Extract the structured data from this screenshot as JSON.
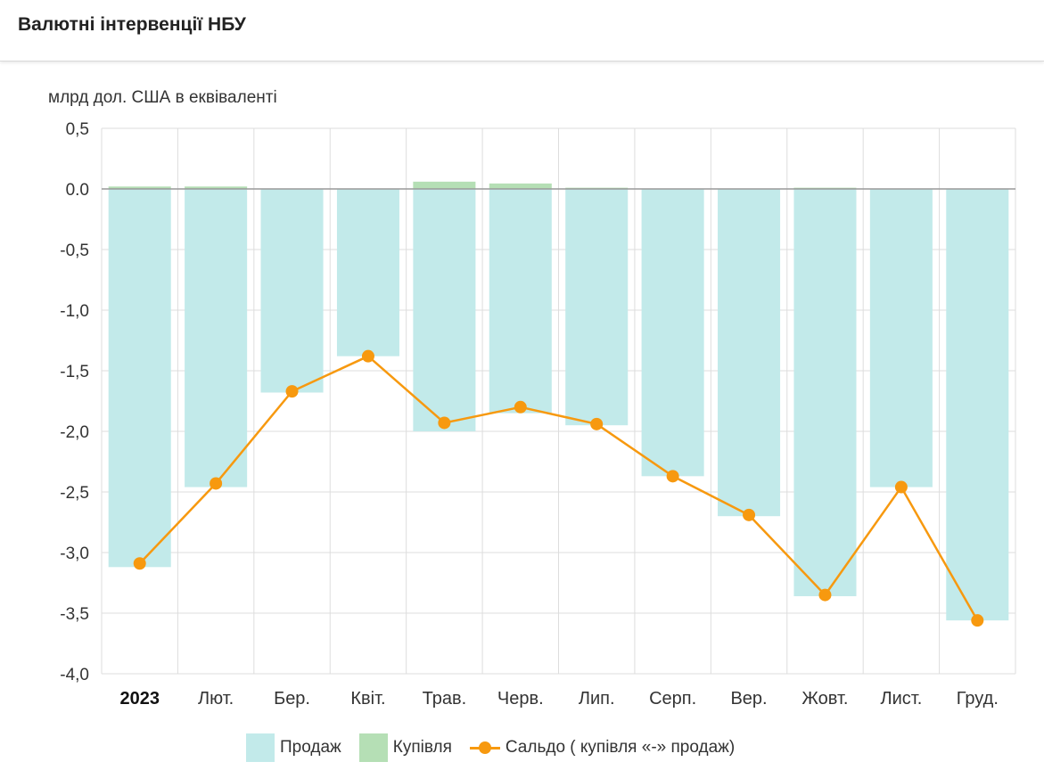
{
  "header": {
    "title": "Валютні інтервенції НБУ"
  },
  "chart_data": {
    "type": "bar",
    "title": "Валютні інтервенції НБУ",
    "ylabel": "млрд дол. США в еквіваленті",
    "ylim": [
      -4.0,
      0.5
    ],
    "yticks": [
      0.5,
      0.0,
      -0.5,
      -1.0,
      -1.5,
      -2.0,
      -2.5,
      -3.0,
      -3.5,
      -4.0
    ],
    "ytick_labels": [
      "0,5",
      "0.0",
      "-0,5",
      "-1,0",
      "-1,5",
      "-2,0",
      "-2,5",
      "-3,0",
      "-3,5",
      "-4,0"
    ],
    "categories": [
      "2023",
      "Лют.",
      "Бер.",
      "Квіт.",
      "Трав.",
      "Черв.",
      "Лип.",
      "Серп.",
      "Вер.",
      "Жовт.",
      "Лист.",
      "Груд."
    ],
    "bold_categories": [
      "2023"
    ],
    "series": [
      {
        "name": "Продаж",
        "type": "bar",
        "color": "#c2eaea",
        "values": [
          -3.12,
          -2.46,
          -1.68,
          -1.38,
          -2.0,
          -1.85,
          -1.95,
          -2.37,
          -2.7,
          -3.36,
          -2.46,
          -3.56
        ]
      },
      {
        "name": "Купівля",
        "type": "bar",
        "color": "#b5dfb5",
        "values": [
          0.02,
          0.02,
          0.0,
          0.0,
          0.06,
          0.045,
          0.01,
          0.0,
          0.0,
          0.01,
          0.0,
          0.0
        ]
      },
      {
        "name": "Сальдо ( купівля «-» продаж)",
        "type": "line",
        "color": "#f7990f",
        "values": [
          -3.09,
          -2.43,
          -1.67,
          -1.38,
          -1.93,
          -1.8,
          -1.94,
          -2.37,
          -2.69,
          -3.35,
          -2.46,
          -3.56
        ]
      }
    ],
    "grid": true,
    "legend": "bottom"
  },
  "colors": {
    "axis_zero": "#999999",
    "grid": "#dddddd"
  }
}
